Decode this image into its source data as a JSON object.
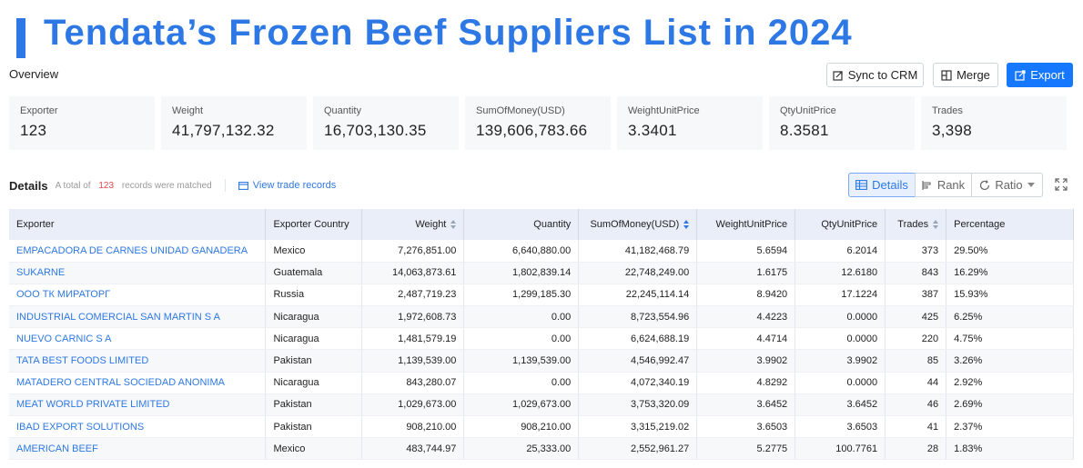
{
  "title": "Tendata’s Frozen Beef Suppliers List in 2024",
  "overview_label": "Overview",
  "toolbar": {
    "sync_label": "Sync to CRM",
    "merge_label": "Merge",
    "export_label": "Export"
  },
  "stats": [
    {
      "label": "Exporter",
      "value": "123"
    },
    {
      "label": "Weight",
      "value": "41,797,132.32"
    },
    {
      "label": "Quantity",
      "value": "16,703,130.35"
    },
    {
      "label": "SumOfMoney(USD)",
      "value": "139,606,783.66"
    },
    {
      "label": "WeightUnitPrice",
      "value": "3.3401"
    },
    {
      "label": "QtyUnitPrice",
      "value": "8.3581"
    },
    {
      "label": "Trades",
      "value": "3,398"
    }
  ],
  "details": {
    "title": "Details",
    "total_prefix": "A total of",
    "total_count": "123",
    "total_suffix": "records were matched",
    "view_link": "View trade records",
    "tabs": {
      "details": "Details",
      "rank": "Rank",
      "ratio": "Ratio"
    }
  },
  "table": {
    "headers": [
      "Exporter",
      "Exporter Country",
      "Weight",
      "Quantity",
      "SumOfMoney(USD)",
      "WeightUnitPrice",
      "QtyUnitPrice",
      "Trades",
      "Percentage"
    ],
    "rows": [
      [
        "EMPACADORA DE CARNES UNIDAD GANADERA",
        "Mexico",
        "7,276,851.00",
        "6,640,880.00",
        "41,182,468.79",
        "5.6594",
        "6.2014",
        "373",
        "29.50%"
      ],
      [
        "SUKARNE",
        "Guatemala",
        "14,063,873.61",
        "1,802,839.14",
        "22,748,249.00",
        "1.6175",
        "12.6180",
        "843",
        "16.29%"
      ],
      [
        "ООО ТК МИРАТОРГ",
        "Russia",
        "2,487,719.23",
        "1,299,185.30",
        "22,245,114.14",
        "8.9420",
        "17.1224",
        "387",
        "15.93%"
      ],
      [
        "INDUSTRIAL COMERCIAL SAN MARTIN S A",
        "Nicaragua",
        "1,972,608.73",
        "0.00",
        "8,723,554.96",
        "4.4223",
        "0.0000",
        "425",
        "6.25%"
      ],
      [
        "NUEVO CARNIC S A",
        "Nicaragua",
        "1,481,579.19",
        "0.00",
        "6,624,688.19",
        "4.4714",
        "0.0000",
        "220",
        "4.75%"
      ],
      [
        "TATA BEST FOODS LIMITED",
        "Pakistan",
        "1,139,539.00",
        "1,139,539.00",
        "4,546,992.47",
        "3.9902",
        "3.9902",
        "85",
        "3.26%"
      ],
      [
        "MATADERO CENTRAL SOCIEDAD ANONIMA",
        "Nicaragua",
        "843,280.07",
        "0.00",
        "4,072,340.19",
        "4.8292",
        "0.0000",
        "44",
        "2.92%"
      ],
      [
        "MEAT WORLD PRIVATE LIMITED",
        "Pakistan",
        "1,029,673.00",
        "1,029,673.00",
        "3,753,320.09",
        "3.6452",
        "3.6452",
        "46",
        "2.69%"
      ],
      [
        "IBAD EXPORT SOLUTIONS",
        "Pakistan",
        "908,210.00",
        "908,210.00",
        "3,315,219.02",
        "3.6503",
        "3.6503",
        "41",
        "2.37%"
      ],
      [
        "AMERICAN BEEF",
        "Mexico",
        "483,744.97",
        "25,333.00",
        "2,552,961.27",
        "5.2775",
        "100.7761",
        "28",
        "1.83%"
      ]
    ]
  },
  "colors": {
    "accent": "#2d78e4",
    "primary_button": "#1677ff",
    "count_red": "#e5484d"
  }
}
